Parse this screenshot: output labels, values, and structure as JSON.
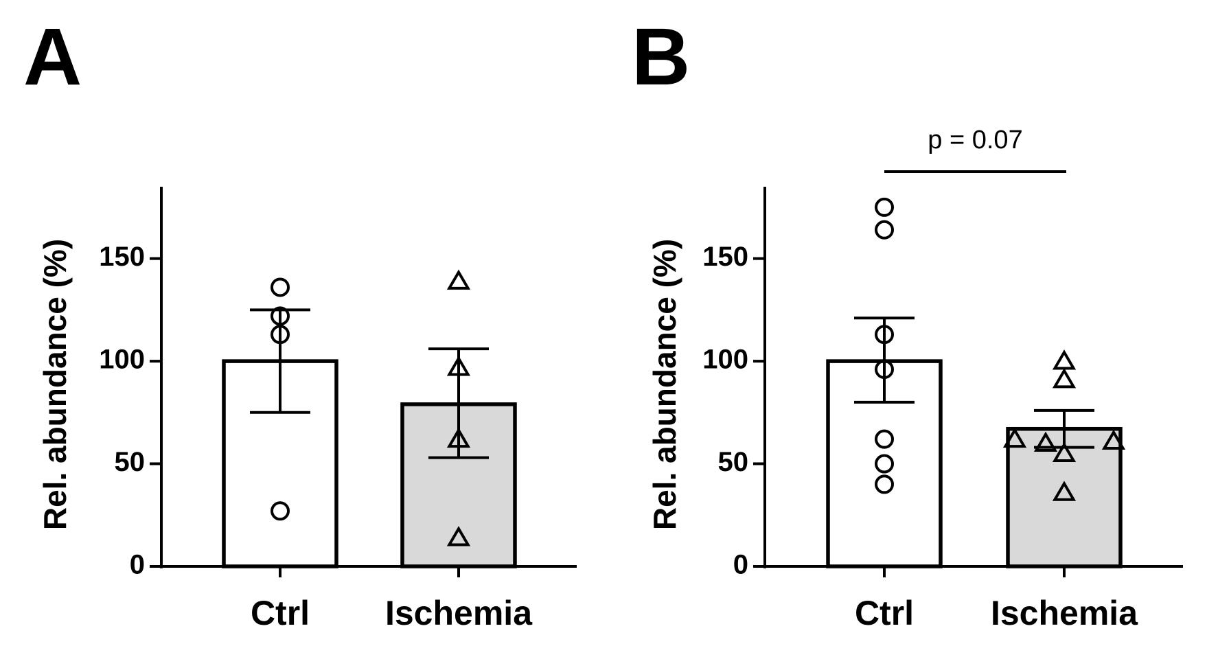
{
  "chart_data": [
    {
      "panel": "A",
      "type": "bar",
      "ylabel": "Rel. abundance (%)",
      "xlabel": "",
      "ylim": [
        0,
        185
      ],
      "yticks": [
        0,
        50,
        100,
        150
      ],
      "categories": [
        "Ctrl",
        "Ischemia"
      ],
      "fill_colors": [
        "#ffffff",
        "#d9d9d9"
      ],
      "values": [
        100,
        79
      ],
      "error_low": [
        75,
        53
      ],
      "error_high": [
        125,
        106
      ],
      "points": [
        {
          "group": "Ctrl",
          "marker": "circle",
          "values": [
            136,
            122,
            113,
            27
          ]
        },
        {
          "group": "Ischemia",
          "marker": "triangle",
          "values": [
            139,
            97,
            62,
            14
          ]
        }
      ],
      "annotation": ""
    },
    {
      "panel": "B",
      "type": "bar",
      "ylabel": "Rel. abundance (%)",
      "xlabel": "",
      "ylim": [
        0,
        185
      ],
      "yticks": [
        0,
        50,
        100,
        150
      ],
      "categories": [
        "Ctrl",
        "Ischemia"
      ],
      "fill_colors": [
        "#ffffff",
        "#d9d9d9"
      ],
      "values": [
        100,
        67
      ],
      "error_low": [
        80,
        58
      ],
      "error_high": [
        121,
        76
      ],
      "points": [
        {
          "group": "Ctrl",
          "marker": "circle",
          "values": [
            175,
            164,
            113,
            96,
            62,
            50,
            40
          ]
        },
        {
          "group": "Ischemia",
          "marker": "triangle",
          "values": [
            100,
            91,
            62,
            60,
            55,
            61,
            36
          ]
        }
      ],
      "annotation": "p = 0.07"
    }
  ]
}
